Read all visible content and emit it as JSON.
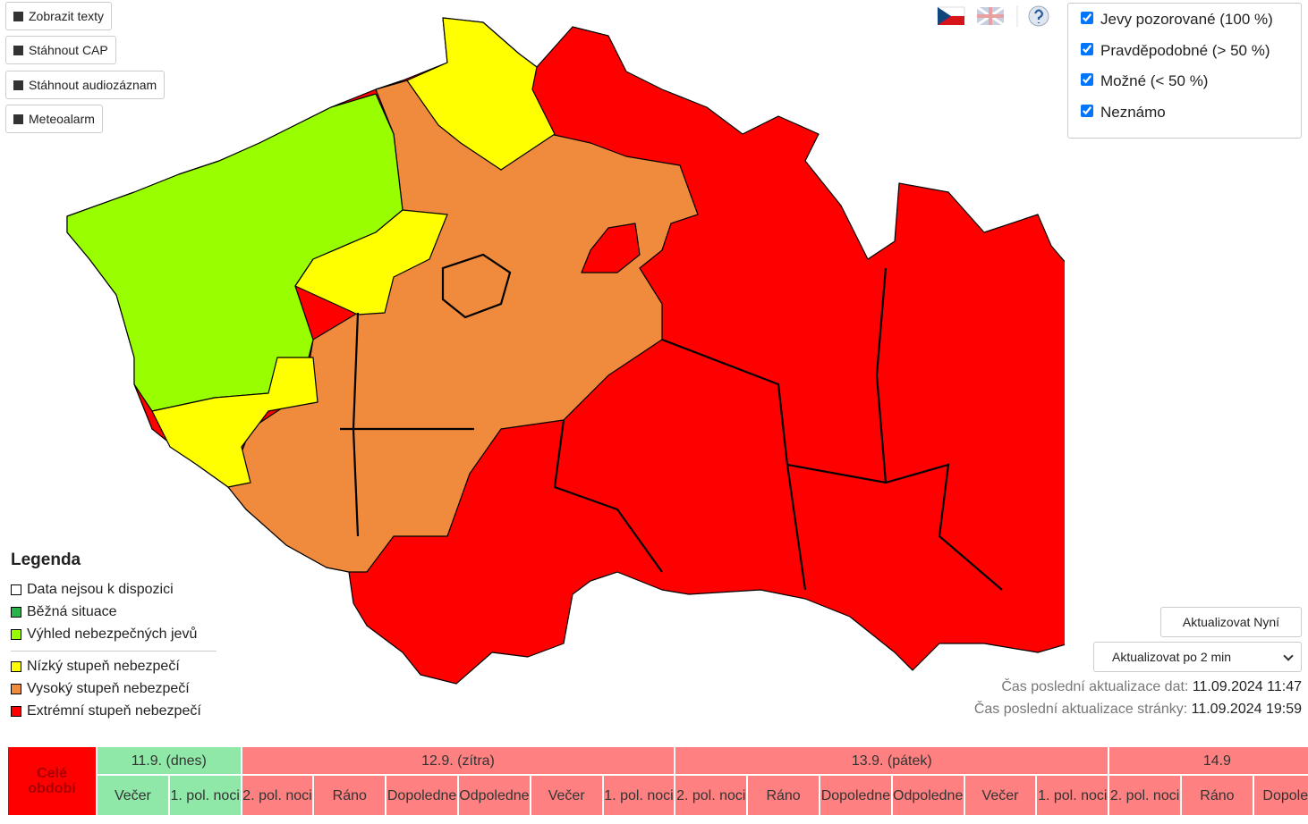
{
  "buttons": [
    "Zobrazit texty",
    "Stáhnout CAP",
    "Stáhnout audiozáznam",
    "Meteoalarm"
  ],
  "filters": [
    {
      "label": "Jevy pozorované (100 %)",
      "checked": true
    },
    {
      "label": "Pravděpodobné (> 50 %)",
      "checked": true
    },
    {
      "label": "Možné (< 50 %)",
      "checked": true
    },
    {
      "label": "Neznámo",
      "checked": true
    }
  ],
  "legend": {
    "title": "Legenda",
    "groups": [
      [
        {
          "label": "Data nejsou k dispozici",
          "color": "#ffffff"
        },
        {
          "label": "Běžná situace",
          "color": "#29b34a"
        },
        {
          "label": "Výhled nebezpečných jevů",
          "color": "#99ff00"
        }
      ],
      [
        {
          "label": "Nízký stupeň nebezpečí",
          "color": "#ffff00"
        },
        {
          "label": "Vysoký stupeň nebezpečí",
          "color": "#f08a3c"
        },
        {
          "label": "Extrémní stupeň nebezpečí",
          "color": "#ff0000"
        }
      ]
    ]
  },
  "refresh_button": "Aktualizovat Nyní",
  "refresh_select": "Aktualizovat po 2 min",
  "updates": [
    {
      "label": "Čas poslední aktualizace dat:",
      "value": "11.09.2024 11:47"
    },
    {
      "label": "Čas poslední aktualizace stránky:",
      "value": "11.09.2024 19:59"
    }
  ],
  "timeline": {
    "whole": "Celé období",
    "days": [
      {
        "label": "11.9. (dnes)",
        "color": "#90e8a8",
        "periods": [
          "Večer",
          "1. pol. noci"
        ]
      },
      {
        "label": "12.9. (zítra)",
        "color": "#ff8080",
        "periods": [
          "2. pol. noci",
          "Ráno",
          "Dopoledne",
          "Odpoledne",
          "Večer",
          "1. pol. noci"
        ]
      },
      {
        "label": "13.9. (pátek)",
        "color": "#ff8080",
        "periods": [
          "2. pol. noci",
          "Ráno",
          "Dopoledne",
          "Odpoledne",
          "Večer",
          "1. pol. noci"
        ]
      },
      {
        "label": "14.9",
        "color": "#ff8080",
        "periods": [
          "2. pol. noci",
          "Ráno",
          "Dopoled"
        ]
      }
    ]
  }
}
